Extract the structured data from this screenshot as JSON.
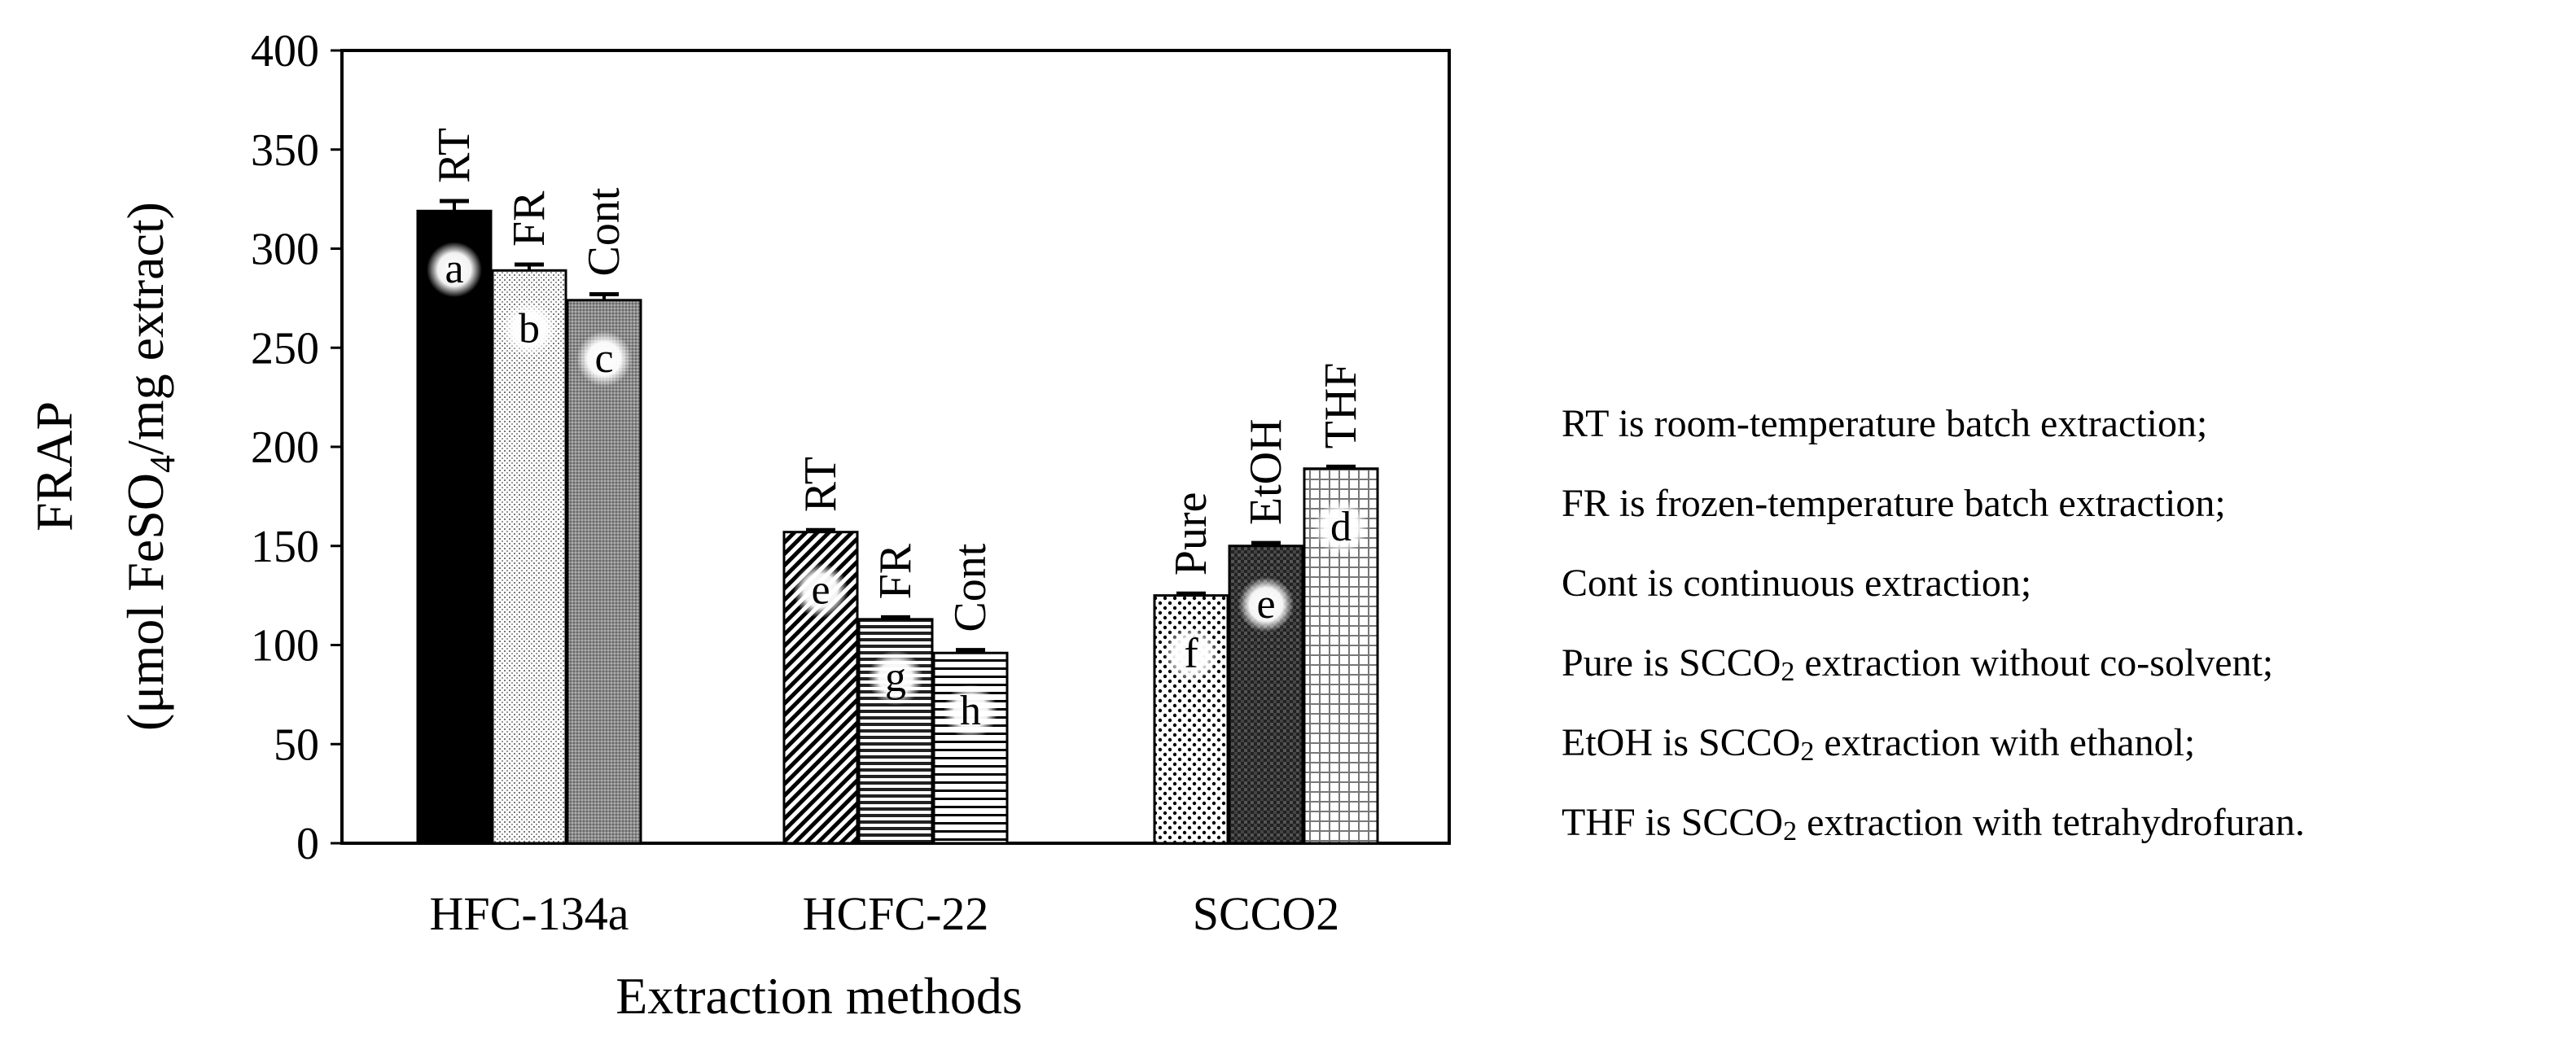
{
  "chart_data": {
    "type": "bar",
    "title": "",
    "xlabel": "Extraction methods",
    "ylabel_line1": "FRAP",
    "ylabel_line2_prefix": "(μmol FeSO",
    "ylabel_subscript": "4",
    "ylabel_line2_suffix": "/mg extract)",
    "ylim": [
      0,
      400
    ],
    "yticks": [
      0,
      50,
      100,
      150,
      200,
      250,
      300,
      350,
      400
    ],
    "grid": false,
    "groups": [
      {
        "category": "HFC-134a",
        "bars": [
          {
            "label": "RT",
            "value": 319,
            "error": 5,
            "letter": "a",
            "pattern": "solid-black"
          },
          {
            "label": "FR",
            "value": 289,
            "error": 3,
            "letter": "b",
            "pattern": "fine-dots"
          },
          {
            "label": "Cont",
            "value": 274,
            "error": 3,
            "letter": "c",
            "pattern": "dense-gray"
          }
        ]
      },
      {
        "category": "HCFC-22",
        "bars": [
          {
            "label": "RT",
            "value": 157,
            "error": 1,
            "letter": "e",
            "pattern": "diagonal"
          },
          {
            "label": "FR",
            "value": 113,
            "error": 1,
            "letter": "g",
            "pattern": "horizontal-dense"
          },
          {
            "label": "Cont",
            "value": 96,
            "error": 1.5,
            "letter": "h",
            "pattern": "horizontal"
          }
        ]
      },
      {
        "category": "SCCO2",
        "bars": [
          {
            "label": "Pure",
            "value": 125,
            "error": 1,
            "letter": "f",
            "pattern": "coarse-dots"
          },
          {
            "label": "EtOH",
            "value": 150,
            "error": 1.5,
            "letter": "e",
            "pattern": "checker-dark"
          },
          {
            "label": "THF",
            "value": 189,
            "error": 1,
            "letter": "d",
            "pattern": "grid"
          }
        ]
      }
    ]
  },
  "notes": [
    {
      "prefix": "RT is room-temperature batch extraction;"
    },
    {
      "prefix": "FR is frozen-temperature batch extraction;"
    },
    {
      "prefix": "Cont is continuous extraction;"
    },
    {
      "prefix": "Pure is SCCO",
      "sub": "2",
      "suffix": " extraction without co-solvent;"
    },
    {
      "prefix": "EtOH is SCCO",
      "sub": "2",
      "suffix": " extraction with ethanol;"
    },
    {
      "prefix": "THF is SCCO",
      "sub": "2",
      "suffix": " extraction with tetrahydrofuran."
    }
  ]
}
